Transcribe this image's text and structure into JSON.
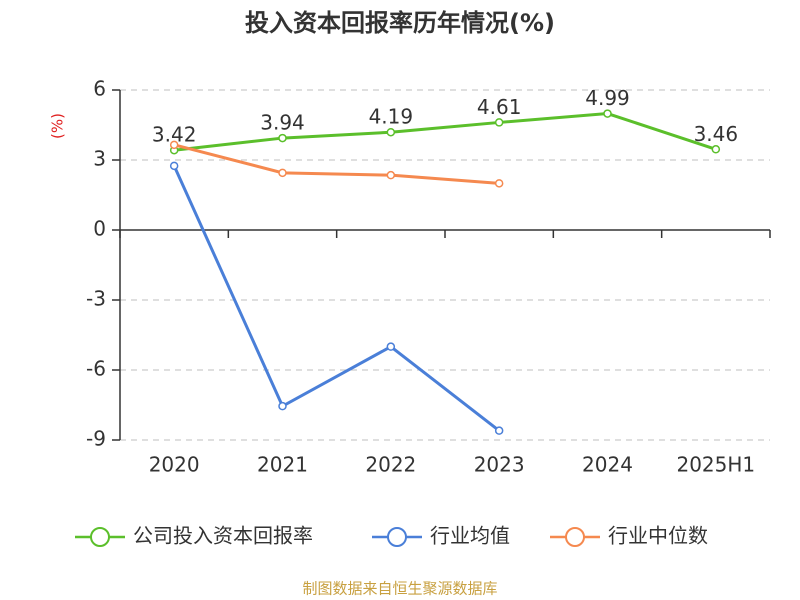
{
  "chart_data": {
    "type": "line",
    "title": "投入资本回报率历年情况(%)",
    "y_label": "(%)",
    "categories": [
      "2020",
      "2021",
      "2022",
      "2023",
      "2024",
      "2025H1"
    ],
    "series": [
      {
        "name": "公司投入资本回报率",
        "color": "#5bbf2b",
        "values": [
          3.42,
          3.94,
          4.19,
          4.61,
          4.99,
          3.46
        ],
        "labels": true
      },
      {
        "name": "行业均值",
        "color": "#4a7fd8",
        "values": [
          2.75,
          -7.55,
          -5.0,
          -8.6,
          null,
          null
        ]
      },
      {
        "name": "行业中位数",
        "color": "#f5894f",
        "values": [
          3.65,
          2.45,
          2.35,
          2.0,
          null,
          null
        ]
      }
    ],
    "ylim": [
      -9,
      6
    ],
    "yticks": [
      -9,
      -6,
      -3,
      0,
      3,
      6
    ],
    "grid": true,
    "legend": "bottom",
    "source": "制图数据来自恒生聚源数据库"
  }
}
